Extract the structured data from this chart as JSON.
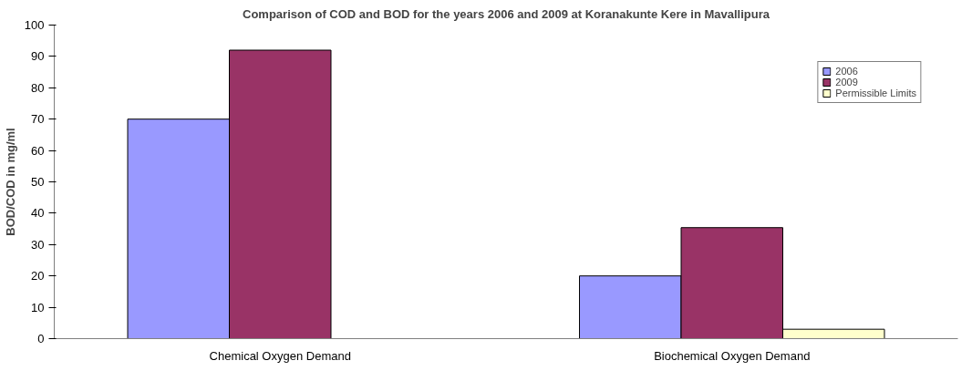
{
  "chart_data": {
    "type": "bar",
    "title": "Comparison of COD and BOD for the years 2006 and 2009 at Koranakunte Kere in Mavallipura",
    "ylabel": "BOD/COD in mg/ml",
    "categories": [
      "Chemical Oxygen Demand",
      "Biochemical Oxygen Demand"
    ],
    "series": [
      {
        "name": "2006",
        "color": "#9999ff",
        "values": [
          70,
          20
        ]
      },
      {
        "name": "2009",
        "color": "#993366",
        "values": [
          92,
          35.4
        ]
      },
      {
        "name": "Permissible Limits",
        "color": "#ffffcc",
        "values": [
          null,
          3
        ]
      }
    ],
    "ylim": [
      0,
      100
    ],
    "yticks": [
      0,
      10,
      20,
      30,
      40,
      50,
      60,
      70,
      80,
      90,
      100
    ],
    "grid": false,
    "legend": "top right"
  }
}
